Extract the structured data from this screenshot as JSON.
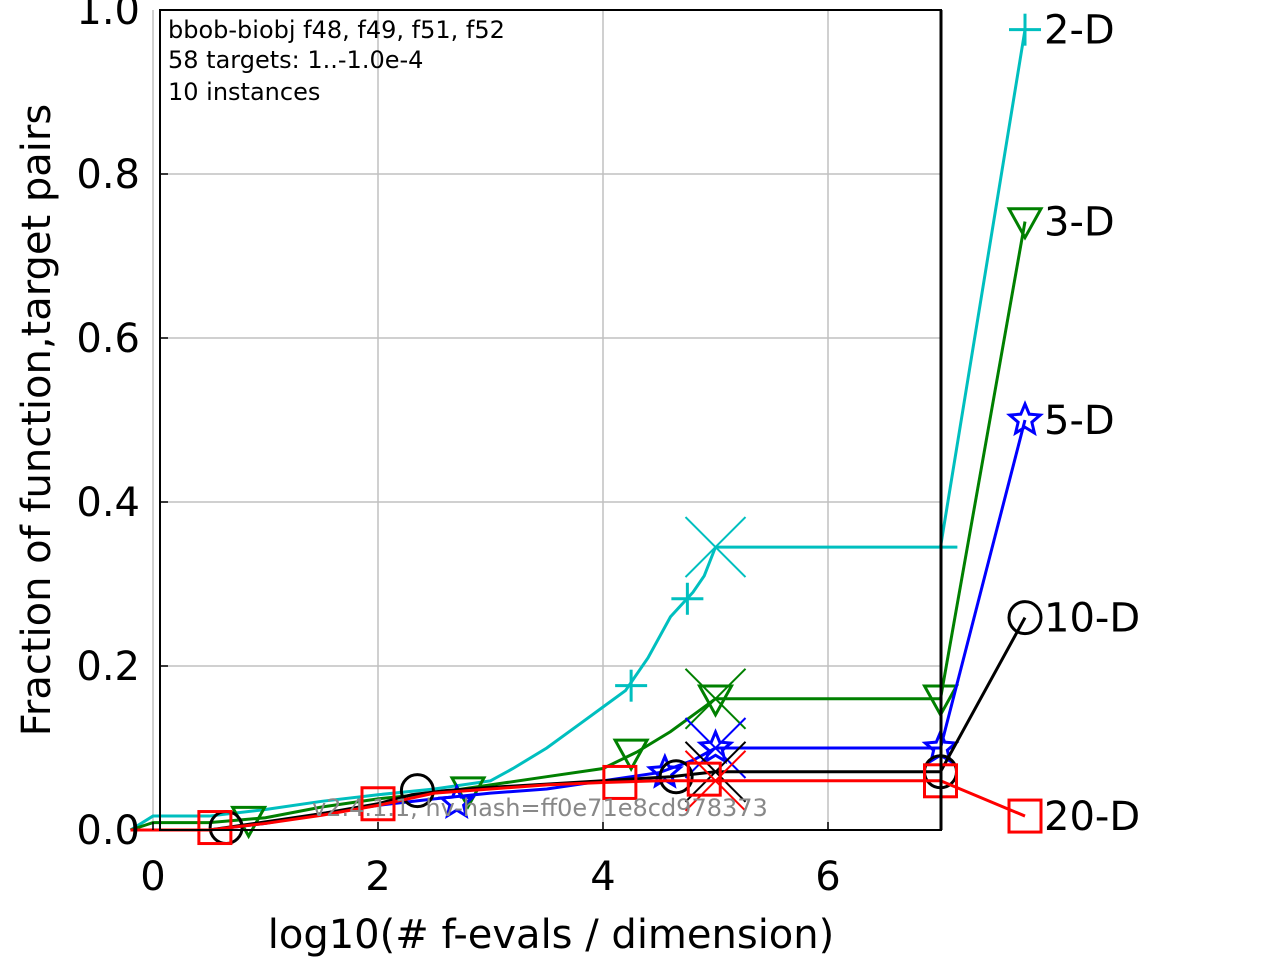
{
  "chart_data": {
    "type": "line",
    "xlabel": "log10(# f-evals / dimension)",
    "ylabel": "Fraction of function,target pairs",
    "xlim": [
      -0.2,
      7.0
    ],
    "ylim": [
      0.0,
      1.0
    ],
    "grid": true,
    "x_ticks": [
      0,
      2,
      4,
      6
    ],
    "x_tick_labels": [
      "0",
      "2",
      "4",
      "6"
    ],
    "y_ticks": [
      0.0,
      0.2,
      0.4,
      0.6,
      0.8,
      1.0
    ],
    "y_tick_labels": [
      "0.0",
      "0.2",
      "0.4",
      "0.6",
      "0.8",
      "1.0"
    ],
    "annotation_lines": [
      "bbob-biobj f48, f49, f51, f52",
      "58 targets: 1..-1.0e-4",
      "10 instances"
    ],
    "watermark": "v2.4.1.1, hv-hash=ff0e71e8cd978373",
    "series": [
      {
        "name": "2-D",
        "color": "#00bfbf",
        "marker": "plus",
        "x": [
          -0.2,
          0.0,
          0.5,
          1.0,
          1.5,
          2.0,
          2.5,
          3.0,
          3.2,
          3.5,
          3.8,
          4.0,
          4.2,
          4.4,
          4.6,
          4.8,
          4.9,
          5.0,
          7.0,
          7.15
        ],
        "y": [
          0.0,
          0.017,
          0.017,
          0.025,
          0.035,
          0.043,
          0.05,
          0.06,
          0.075,
          0.1,
          0.13,
          0.15,
          0.17,
          0.21,
          0.26,
          0.29,
          0.31,
          0.345,
          0.345,
          0.345
        ],
        "markers": [
          [
            4.25,
            0.176
          ],
          [
            4.75,
            0.282
          ]
        ],
        "end_x_marker": 5.0,
        "end_y": 0.345,
        "final_value": 0.976
      },
      {
        "name": "3-D",
        "color": "#008000",
        "marker": "triangle-down",
        "x": [
          -0.2,
          0.0,
          0.5,
          1.0,
          1.5,
          2.0,
          2.5,
          3.0,
          3.5,
          4.0,
          4.3,
          4.6,
          4.8,
          5.0,
          7.0
        ],
        "y": [
          0.0,
          0.009,
          0.009,
          0.015,
          0.028,
          0.038,
          0.045,
          0.055,
          0.065,
          0.075,
          0.095,
          0.12,
          0.14,
          0.16,
          0.16
        ],
        "markers": [
          [
            0.85,
            0.012
          ],
          [
            2.8,
            0.048
          ],
          [
            4.25,
            0.094
          ],
          [
            5.0,
            0.16
          ],
          [
            7.0,
            0.16
          ]
        ],
        "end_x_marker": 5.0,
        "end_y": 0.16,
        "final_value": 0.742
      },
      {
        "name": "5-D",
        "color": "#0000ff",
        "marker": "star",
        "x": [
          -0.2,
          0.0,
          0.5,
          1.0,
          1.5,
          2.0,
          2.5,
          3.0,
          3.5,
          4.0,
          4.5,
          4.8,
          5.0,
          7.0
        ],
        "y": [
          0.0,
          0.0,
          0.0,
          0.008,
          0.02,
          0.03,
          0.038,
          0.045,
          0.05,
          0.06,
          0.07,
          0.085,
          0.1,
          0.1
        ],
        "markers": [
          [
            2.7,
            0.033
          ],
          [
            4.55,
            0.07
          ],
          [
            5.0,
            0.1
          ],
          [
            7.0,
            0.1
          ]
        ],
        "end_x_marker": 5.0,
        "end_y": 0.1,
        "final_value": 0.5
      },
      {
        "name": "10-D",
        "color": "#000000",
        "marker": "circle",
        "x": [
          -0.2,
          0.0,
          0.5,
          1.0,
          1.5,
          2.0,
          2.3,
          2.6,
          3.0,
          3.5,
          4.0,
          4.6,
          5.0,
          7.0
        ],
        "y": [
          0.0,
          0.0,
          0.0,
          0.01,
          0.02,
          0.032,
          0.043,
          0.048,
          0.052,
          0.056,
          0.06,
          0.065,
          0.071,
          0.071
        ],
        "markers": [
          [
            0.65,
            0.003
          ],
          [
            2.35,
            0.048
          ],
          [
            4.65,
            0.065
          ],
          [
            7.0,
            0.071
          ]
        ],
        "end_x_marker": 5.0,
        "end_y": 0.071,
        "final_value": 0.259
      },
      {
        "name": "20-D",
        "color": "#ff0000",
        "marker": "square",
        "x": [
          -0.2,
          0.0,
          0.5,
          1.0,
          1.5,
          2.0,
          2.5,
          3.0,
          3.5,
          4.0,
          4.5,
          5.0,
          7.0
        ],
        "y": [
          0.0,
          0.0,
          0.0,
          0.008,
          0.018,
          0.03,
          0.045,
          0.05,
          0.055,
          0.058,
          0.06,
          0.06,
          0.06
        ],
        "markers": [
          [
            0.55,
            0.003
          ],
          [
            2.0,
            0.032
          ],
          [
            4.15,
            0.058
          ],
          [
            4.9,
            0.062
          ],
          [
            7.0,
            0.06
          ]
        ],
        "end_x_marker": 5.0,
        "end_y": 0.06,
        "final_value": 0.017
      }
    ]
  }
}
